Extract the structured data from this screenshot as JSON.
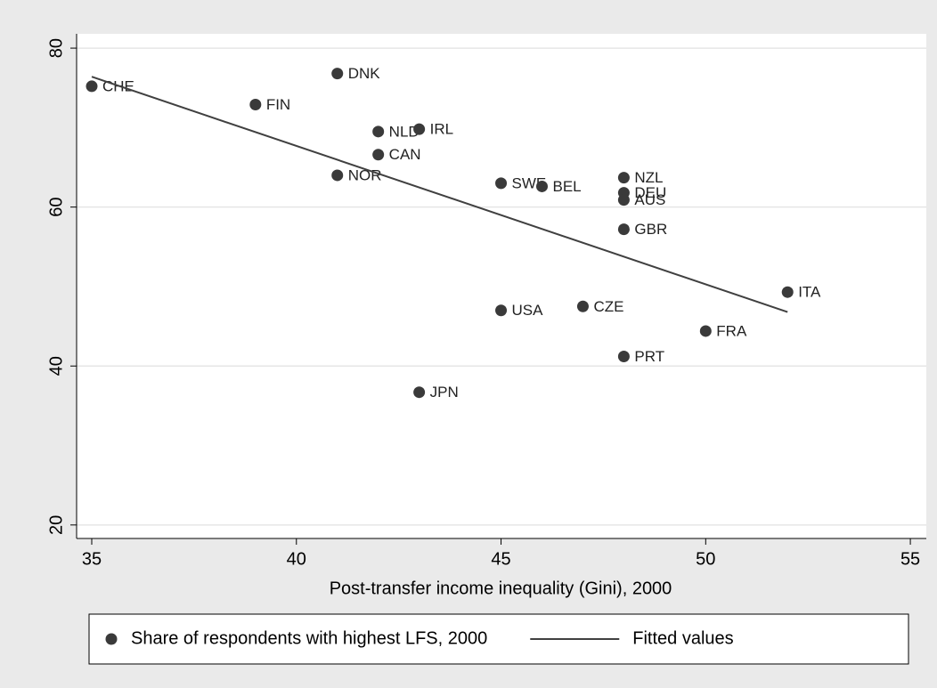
{
  "chart_data": {
    "type": "scatter",
    "x_label": "Post-transfer income inequality (Gini), 2000",
    "xlim": [
      34.63,
      55.39
    ],
    "ylim": [
      18.3,
      81.8
    ],
    "xticks": [
      35,
      40,
      45,
      50,
      55
    ],
    "yticks": [
      20,
      40,
      60,
      80
    ],
    "grid": true,
    "legend_position": "bottom",
    "series": [
      {
        "name": "Share of respondents with highest LFS, 2000",
        "type": "scatter",
        "color": "#3a3a3a",
        "labels": [
          "CHE",
          "DNK",
          "FIN",
          "NLD",
          "IRL",
          "CAN",
          "NOR",
          "SWE",
          "BEL",
          "NZL",
          "DEU",
          "AUS",
          "GBR",
          "ITA",
          "CZE",
          "USA",
          "FRA",
          "PRT",
          "JPN"
        ],
        "x": [
          35,
          41,
          39,
          42,
          43,
          42,
          41,
          45,
          46,
          48,
          48,
          48,
          48,
          52,
          47,
          45,
          50,
          48,
          43
        ],
        "values": [
          75.2,
          76.8,
          72.9,
          69.5,
          69.8,
          66.6,
          64.0,
          63.0,
          62.6,
          63.7,
          61.8,
          60.9,
          57.2,
          49.3,
          47.5,
          47.0,
          44.4,
          41.2,
          36.7
        ]
      },
      {
        "name": "Fitted values",
        "type": "line",
        "color": "#404040",
        "x": [
          35,
          52
        ],
        "values": [
          76.4,
          46.8
        ]
      }
    ]
  }
}
